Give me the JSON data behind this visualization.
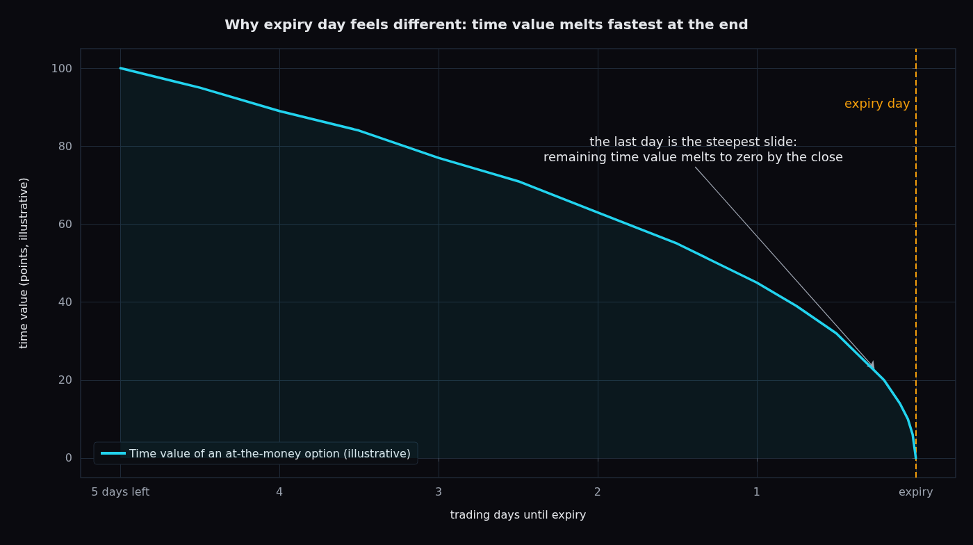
{
  "chart_data": {
    "type": "area",
    "title": "Why expiry day feels different: time value melts fastest at the end",
    "xlabel": "trading days until expiry",
    "ylabel": "time value (points, illustrative)",
    "x": [
      5,
      4.5,
      4,
      3.5,
      3,
      2.5,
      2,
      1.5,
      1,
      0.75,
      0.5,
      0.3,
      0.2,
      0.1,
      0.05,
      0.02,
      0
    ],
    "series": [
      {
        "name": "Time value of an at-the-money option (illustrative)",
        "color": "#22d3ee",
        "values": [
          100,
          95,
          89,
          84,
          77,
          71,
          63,
          55,
          45,
          39,
          32,
          24,
          20,
          14,
          10,
          6,
          0
        ]
      }
    ],
    "xlim": [
      5.25,
      -0.25
    ],
    "xticks": [
      {
        "value": 5,
        "label": "5 days left"
      },
      4,
      3,
      2,
      1,
      {
        "value": 0,
        "label": "expiry"
      }
    ],
    "ylim": [
      -5,
      105
    ],
    "yticks": [
      0,
      20,
      40,
      60,
      80,
      100
    ],
    "ref_lines": [
      {
        "axis": "x",
        "value": 0,
        "label": "expiry day",
        "color": "#f59e0b",
        "line_style": "dashed"
      }
    ],
    "annotations": [
      {
        "text": "the last day is the steepest slide:\nremaining time value melts to zero by the close",
        "x": 0.26,
        "y": 23
      }
    ],
    "grid": true,
    "legend": "bottom left",
    "marker": "none",
    "line_style": "solid"
  }
}
